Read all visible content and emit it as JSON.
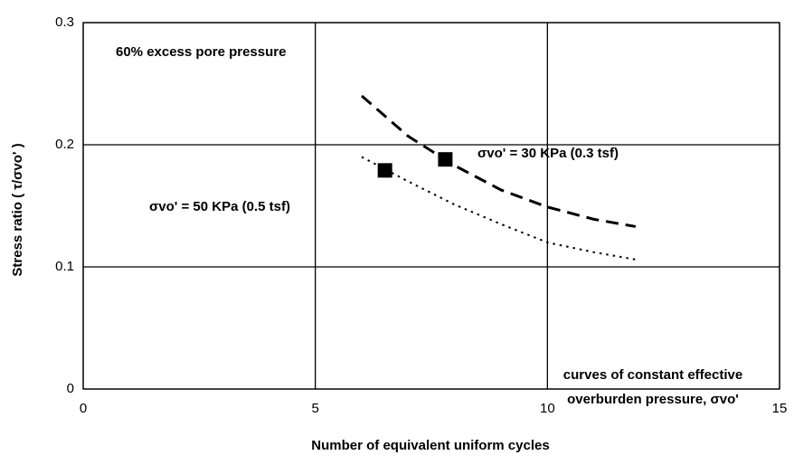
{
  "chart_data": {
    "type": "line",
    "xlabel": "Number of equivalent uniform cycles",
    "ylabel": "Stress ratio ( τ/σvo' )",
    "xlim": [
      0,
      15
    ],
    "xticks": [
      0,
      5,
      10,
      15
    ],
    "ylim": [
      0,
      0.3
    ],
    "yticks": [
      0,
      0.1,
      0.2,
      0.3
    ],
    "grid": true,
    "annotations": [
      "60% excess pore pressure",
      "curves of constant effective",
      "overburden pressure, σvo'"
    ],
    "series": [
      {
        "name": "σvo' = 30 KPa (0.3 tsf)",
        "color": "#000000",
        "style": "dashed",
        "x": [
          6,
          7,
          7.5,
          8,
          9,
          10,
          11,
          11.9
        ],
        "values": [
          0.24,
          0.207,
          0.195,
          0.183,
          0.163,
          0.149,
          0.139,
          0.133
        ]
      },
      {
        "name": "σvo' = 50 KPa (0.5 tsf)",
        "color": "#000000",
        "style": "dotted",
        "x": [
          6,
          7,
          8,
          9,
          10,
          11,
          11.9
        ],
        "values": [
          0.19,
          0.17,
          0.151,
          0.135,
          0.12,
          0.112,
          0.106
        ]
      }
    ],
    "points": {
      "color": "#000000",
      "x": [
        6.5,
        7.8
      ],
      "values": [
        0.179,
        0.188
      ]
    }
  }
}
